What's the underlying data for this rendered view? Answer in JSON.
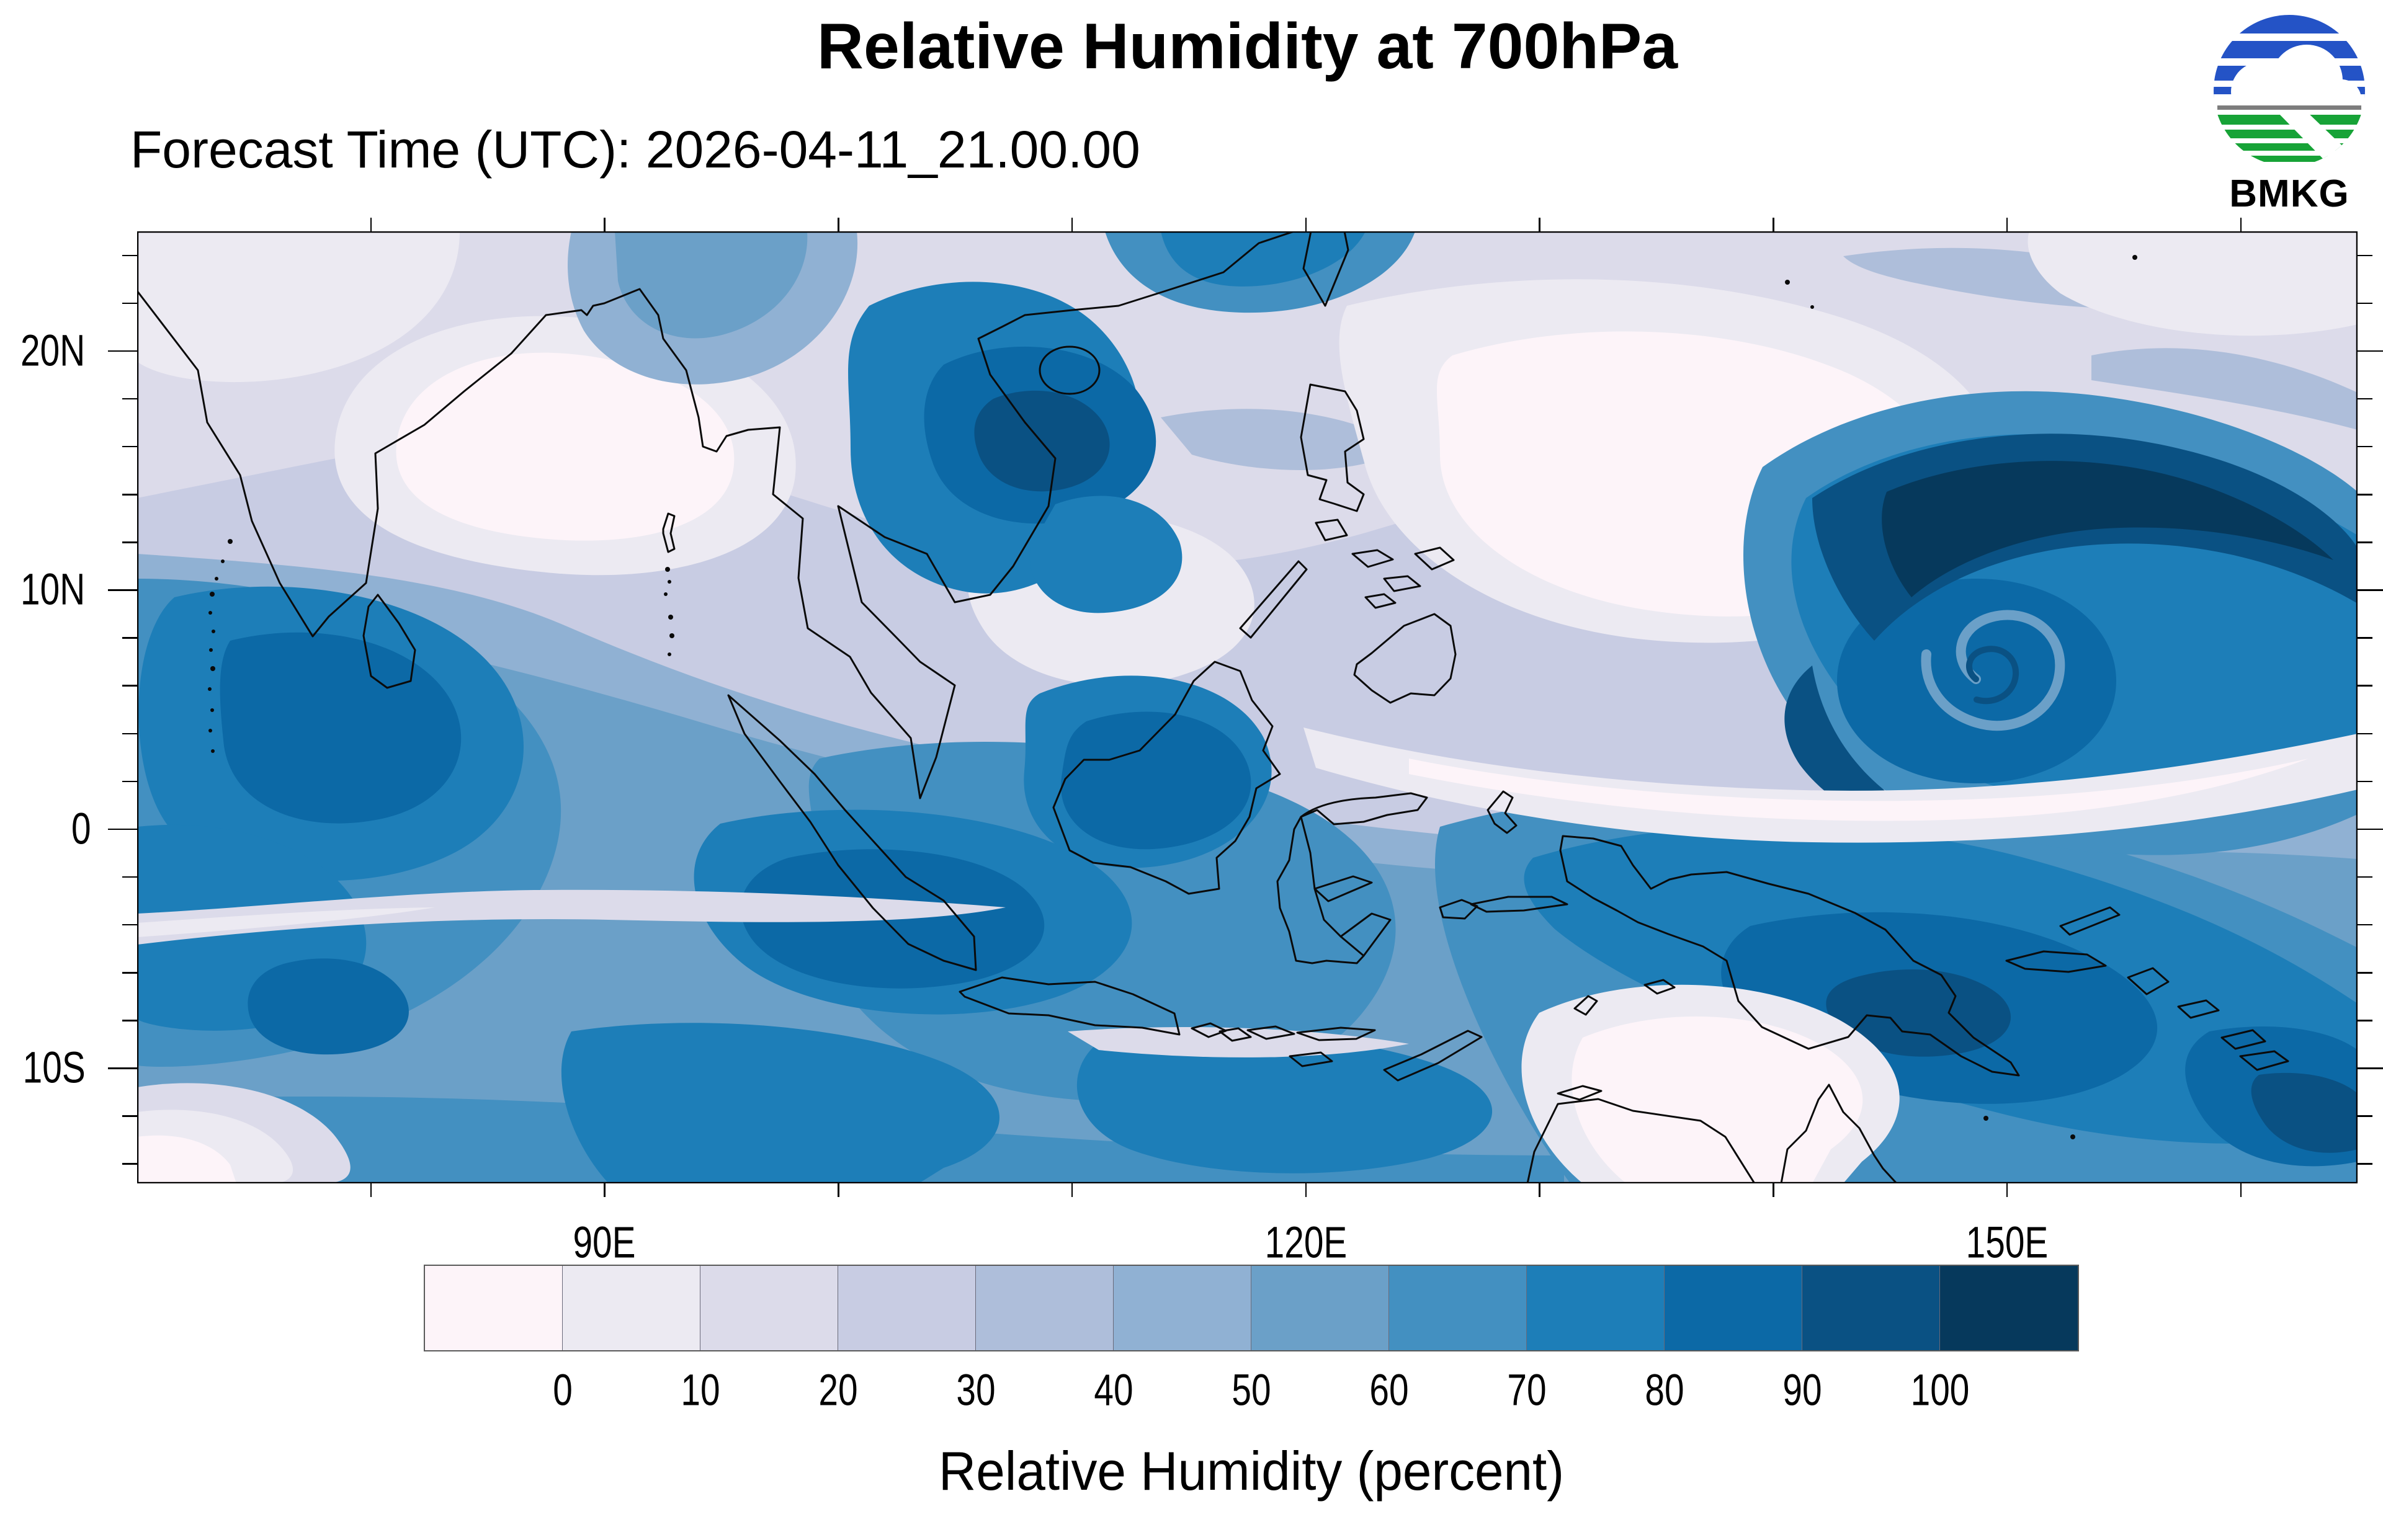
{
  "header": {
    "title": "Relative Humidity at 700hPa",
    "forecast_line": "Forecast Time (UTC): 2026-04-11_21.00.00",
    "logo_text": "BMKG",
    "logo_icon": "bmkg-sphere-icon"
  },
  "chart_data": {
    "type": "heatmap",
    "title": "Relative Humidity at 700hPa",
    "subtitle": "Forecast Time (UTC): 2026-04-11_21.00.00",
    "variable": "Relative Humidity",
    "units": "percent",
    "pressure_level": "700hPa",
    "projection": "lat-lon map of Maritime Continent / Southeast Asia",
    "x_axis": {
      "label_ticks": [
        {
          "lon": 90,
          "label": "90E"
        },
        {
          "lon": 120,
          "label": "120E"
        },
        {
          "lon": 150,
          "label": "150E"
        }
      ],
      "minor_tick_step_deg": 10,
      "range_deg_east": [
        70,
        165
      ],
      "grid": false
    },
    "y_axis": {
      "label_ticks": [
        {
          "lat": 20,
          "label": "20N"
        },
        {
          "lat": 10,
          "label": "10N"
        },
        {
          "lat": 0,
          "label": "0"
        },
        {
          "lat": -10,
          "label": "10S"
        }
      ],
      "minor_tick_step_deg": 2,
      "range_deg_north": [
        -14.8,
        25
      ],
      "grid": false
    },
    "colorbar": {
      "label": "Relative Humidity (percent)",
      "tick_labels": [
        "0",
        "10",
        "20",
        "30",
        "40",
        "50",
        "60",
        "70",
        "80",
        "90",
        "100"
      ],
      "levels_percent": [
        0,
        10,
        20,
        30,
        40,
        50,
        60,
        70,
        80,
        90,
        100
      ],
      "colors": [
        "#fdf4f9",
        "#eceaf2",
        "#dcdbea",
        "#c8cce3",
        "#aebeda",
        "#90b1d3",
        "#6ba0c8",
        "#4390c1",
        "#1d7eb8",
        "#0c69a6",
        "#0a5183",
        "#06395c"
      ],
      "position": "bottom"
    },
    "notable_features": [
      "dry tongue (<10%) over Bay of Bengal and Philippine Sea",
      "moist equatorial band (60-90%) across Indonesia",
      "tropical cyclone spiral of 80-100% humidity near 149E 6N",
      "very moist air (80-100%) over New Guinea",
      "dry patch over Arafura Sea"
    ]
  }
}
